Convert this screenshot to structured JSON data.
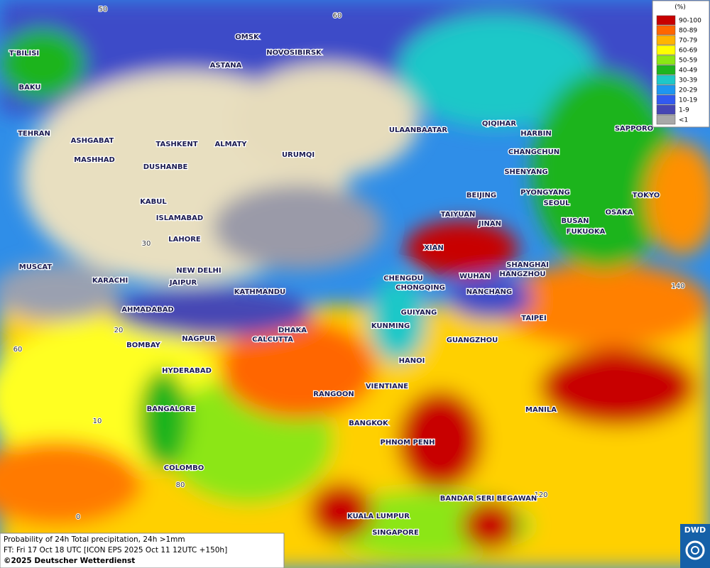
{
  "legend": {
    "title": "(%)",
    "entries": [
      {
        "label": "90-100",
        "color": "#c80000"
      },
      {
        "label": "80-89",
        "color": "#ff6600"
      },
      {
        "label": "70-79",
        "color": "#ffb400"
      },
      {
        "label": "60-69",
        "color": "#ffff00"
      },
      {
        "label": "50-59",
        "color": "#8ce614"
      },
      {
        "label": "40-49",
        "color": "#1eb41e"
      },
      {
        "label": "30-39",
        "color": "#1ec8c8"
      },
      {
        "label": "20-29",
        "color": "#1e96f0"
      },
      {
        "label": "10-19",
        "color": "#325af0"
      },
      {
        "label": "1-9",
        "color": "#4646b4"
      },
      {
        "label": "<1",
        "color": "#a8a8a8"
      }
    ]
  },
  "cities": [
    "T'BILISI",
    "OMSK",
    "NOVOSIBIRSK",
    "ASTANA",
    "BAKU",
    "TEHRAN",
    "ASHGABAT",
    "MASHHAD",
    "TASHKENT",
    "ALMATY",
    "URUMQI",
    "DUSHANBE",
    "ULAANBAATAR",
    "QIQIHAR",
    "HARBIN",
    "CHANGCHUN",
    "SHENYANG",
    "SAPPORO",
    "KABUL",
    "ISLAMABAD",
    "BEIJING",
    "PYONGYANG",
    "SEOUL",
    "TOKYO",
    "TAIYUAN",
    "JINAN",
    "BUSAN",
    "OSAKA",
    "FUKUOKA",
    "LAHORE",
    "XIAN",
    "NEW DELHI",
    "SHANGHAI",
    "HANGZHOU",
    "MUSCAT",
    "CHENGDU",
    "WUHAN",
    "KARACHI",
    "JAIPUR",
    "CHONGQING",
    "KATHMANDU",
    "NANCHANG",
    "AHMADABAD",
    "GUIYANG",
    "TAIPEI",
    "KUNMING",
    "DHAKA",
    "NAGPUR",
    "CALCUTTA",
    "GUANGZHOU",
    "BOMBAY",
    "HANOI",
    "HYDERABAD",
    "VIENTIANE",
    "RANGOON",
    "BANGALORE",
    "MANILA",
    "BANGKOK",
    "PHNOM PENH",
    "COLOMBO",
    "BANDAR SERI BEGAWAN",
    "KUALA LUMPUR",
    "SINGAPORE"
  ],
  "grid_labels": [
    "50",
    "60",
    "30",
    "140",
    "20",
    "60",
    "10",
    "80",
    "120",
    "0"
  ],
  "caption": [
    "Probability of 24h Total precipitation, 24h >1mm",
    "FT: Fri 17 Oct 18 UTC [ICON EPS 2025 Oct 11 12UTC +150h]",
    "©2025 Deutscher Wetterdienst"
  ],
  "logo": "DWD"
}
